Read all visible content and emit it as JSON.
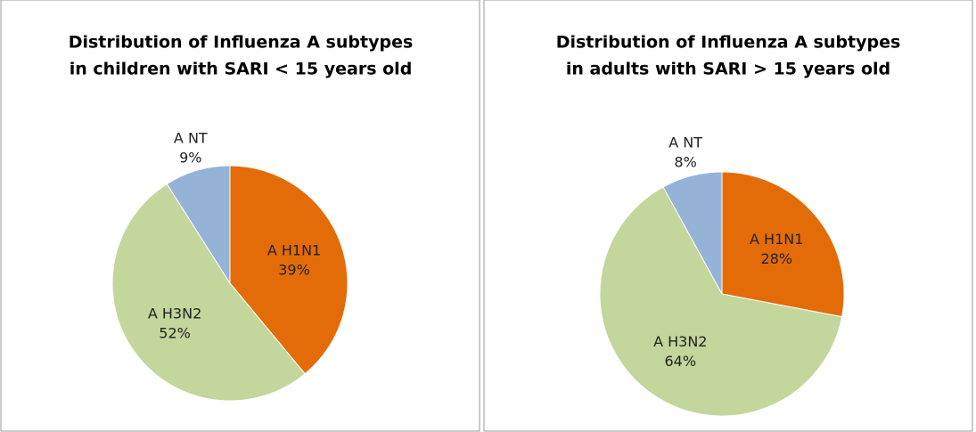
{
  "chart_data": [
    {
      "type": "pie",
      "title": [
        "Distribution of Influenza A subtypes",
        "in children with SARI < 15 years old"
      ],
      "categories": [
        "A H1N1",
        "A H3N2",
        "A NT"
      ],
      "values": [
        39,
        52,
        9
      ],
      "value_labels": [
        "39%",
        "52%",
        "9%"
      ],
      "colors": [
        "#e36c09",
        "#c3d69b",
        "#95b3d7"
      ]
    },
    {
      "type": "pie",
      "title": [
        "Distribution of Influenza A subtypes",
        "in adults with SARI > 15 years old"
      ],
      "categories": [
        "A H1N1",
        "A H3N2",
        "A NT"
      ],
      "values": [
        28,
        64,
        8
      ],
      "value_labels": [
        "28%",
        "64%",
        "8%"
      ],
      "colors": [
        "#e36c09",
        "#c3d69b",
        "#95b3d7"
      ]
    }
  ]
}
